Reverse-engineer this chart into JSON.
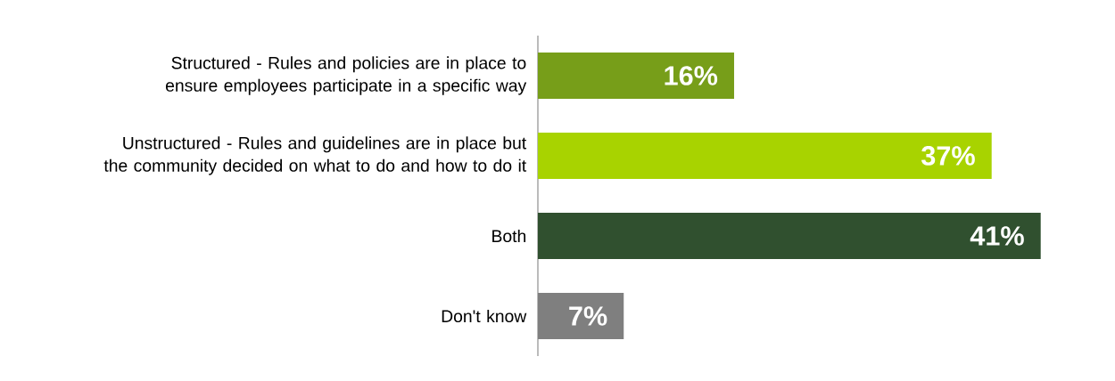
{
  "chart_data": {
    "type": "bar",
    "orientation": "horizontal",
    "categories": [
      "Structured - Rules and policies are in place to ensure employees participate in a specific way",
      "Unstructured - Rules and guidelines are in place but the community decided on what to do and how to do it",
      "Both",
      "Don't know"
    ],
    "values": [
      16,
      37,
      41,
      7
    ],
    "colors": [
      "#779e19",
      "#a8d300",
      "#30502f",
      "#7f7f7f"
    ],
    "value_labels": [
      "16%",
      "37%",
      "41%",
      "7%"
    ]
  }
}
